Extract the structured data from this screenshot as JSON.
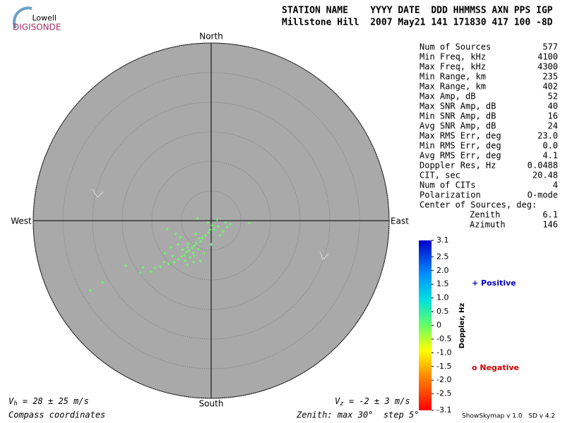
{
  "logo": {
    "line1": "Lowell",
    "line2": "DIGISONDE"
  },
  "header": {
    "labels": "STATION NAME    YYYY DATE  DDD HHMMSS AXN PPS IGP",
    "values": "Millstone Hill  2007 May21 141 171830 417 100 -8D"
  },
  "stats": [
    [
      "Num of Sources",
      "577"
    ],
    [
      "Min Freq, kHz",
      "4100"
    ],
    [
      "Max Freq, kHz",
      "4300"
    ],
    [
      "Min Range, km",
      "235"
    ],
    [
      "Max Range, km",
      "402"
    ],
    [
      "Max Amp, dB",
      "52"
    ],
    [
      "Max SNR Amp, dB",
      "40"
    ],
    [
      "Min SNR Amp, dB",
      "16"
    ],
    [
      "Avg SNR Amp, dB",
      "24"
    ],
    [
      "Max RMS Err, deg",
      "23.0"
    ],
    [
      "Min RMS Err, deg",
      "0.0"
    ],
    [
      "Avg RMS Err, deg",
      "4.1"
    ],
    [
      "Doppler Res, Hz",
      "0.0488"
    ],
    [
      "CIT, sec",
      "20.48"
    ],
    [
      "Num of CITs",
      "4"
    ],
    [
      "Polarization",
      "O-mode"
    ]
  ],
  "center": {
    "title": "Center of Sources, deg:",
    "rows": [
      [
        "Zenith",
        "6.1"
      ],
      [
        "Azimuth",
        "146"
      ]
    ]
  },
  "chart_data": {
    "type": "skymap",
    "directions": {
      "north": "North",
      "south": "South",
      "west": "West",
      "east": "East"
    },
    "xlim": [
      -30,
      30
    ],
    "ylim": [
      -30,
      30
    ],
    "rings": [
      5,
      10,
      15,
      20,
      25,
      30
    ],
    "color": "#66ff66",
    "points": {
      "x": [
        -3.7,
        -3.2,
        -4.1,
        -2.8,
        -4.5,
        -3.0,
        -4.0,
        -2.5,
        -5.0,
        -3.5,
        -2.2,
        -4.8,
        -1.8,
        -5.5,
        -3.9,
        -2.9,
        -1.5,
        -6.2,
        -4.4,
        -2.0,
        -1.0,
        -0.5,
        0.5,
        1.2,
        2.0,
        2.7,
        3.2,
        -6.5,
        -7.2,
        -8.0,
        -8.6,
        -9.5,
        -10.2,
        -11.5,
        -12.0,
        -14.4,
        -18.3,
        -20.4,
        6.4,
        -7.4,
        -6.0,
        -5.2,
        -2.3,
        -0.6,
        0.2,
        1.5,
        0.0,
        -1.2,
        -3.0,
        -4.0,
        -6.8,
        -7.8,
        -2.6,
        -1.8,
        -5.6,
        2.4,
        1.0,
        -0.2
      ],
      "y": [
        -5.0,
        -4.6,
        -5.3,
        -4.2,
        -5.8,
        -5.4,
        -4.5,
        -3.8,
        -6.0,
        -6.2,
        -4.8,
        -4.9,
        -3.5,
        -6.5,
        -3.9,
        -5.9,
        -2.9,
        -7.0,
        -6.8,
        -3.0,
        -2.5,
        -2.0,
        -1.5,
        -1.0,
        -1.8,
        -1.1,
        -0.6,
        -6.0,
        -7.3,
        -7.0,
        -7.8,
        -8.0,
        -8.6,
        -7.9,
        -8.8,
        -7.6,
        -10.4,
        -11.8,
        -0.4,
        -1.4,
        -2.2,
        -2.8,
        0.4,
        -0.3,
        -0.8,
        -2.5,
        -4.0,
        -5.5,
        -7.0,
        -7.5,
        -4.5,
        -5.5,
        -2.2,
        -6.8,
        -4.0,
        -0.3,
        0.2,
        -1.5
      ]
    }
  },
  "colorbar": {
    "label": "Doppler, Hz",
    "lim": [
      -3.1,
      3.1
    ],
    "ticks": [
      3.1,
      2.5,
      {
        "value": 2,
        "label": "2.0"
      },
      1.5,
      {
        "value": 1,
        "label": "1.0"
      },
      0.5,
      0,
      -0.5,
      {
        "value": -1,
        "label": "-1.0"
      },
      -1.5,
      {
        "value": -2,
        "label": "-2.0"
      },
      -2.5,
      -3.1
    ],
    "positive": "+ Positive",
    "negative": "o Negative"
  },
  "footer": {
    "vh": [
      "V",
      "h",
      " = 28 ± 25 m/s"
    ],
    "vz": [
      "V",
      "z",
      " = -2 ± 3 m/s"
    ],
    "coords": "Compass coordinates",
    "zenith": "Zenith: max 30°  step 5°",
    "version": "ShowSkymap v 1.0   SD v 4.2"
  }
}
